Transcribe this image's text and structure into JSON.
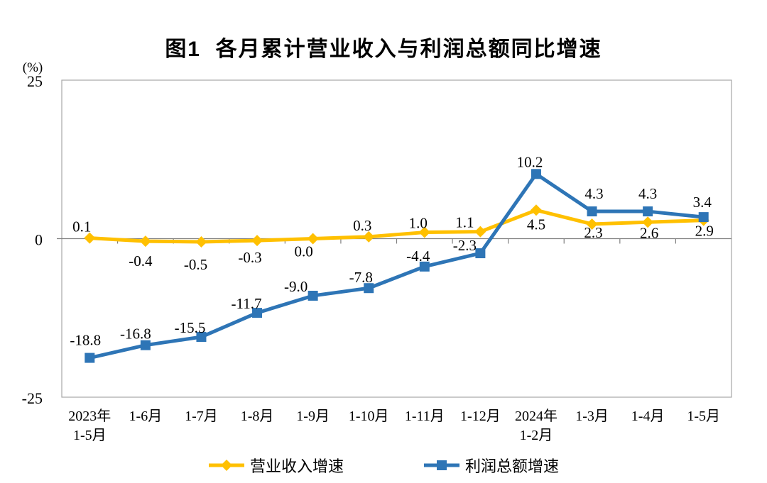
{
  "title": "图1  各月累计营业收入与利润总额同比增速",
  "unit_label": "(%)",
  "colors": {
    "frame": "#a6a6a6",
    "axis": "#808080",
    "text": "#000000",
    "revenue_series": "#ffc000",
    "profit_series": "#2e75b6"
  },
  "chart_data": {
    "type": "line",
    "title": "图1  各月累计营业收入与利润总额同比增速",
    "ylabel": "(%)",
    "xlabel": "",
    "ylim": [
      -25,
      25
    ],
    "y_ticks": [
      25,
      0,
      -25
    ],
    "grid": false,
    "legend_position": "bottom",
    "categories": [
      "2023年\n1-5月",
      "1-6月",
      "1-7月",
      "1-8月",
      "1-9月",
      "1-10月",
      "1-11月",
      "1-12月",
      "2024年\n1-2月",
      "1-3月",
      "1-4月",
      "1-5月"
    ],
    "series": [
      {
        "name": "营业收入增速",
        "color": "#ffc000",
        "marker": "diamond",
        "values": [
          0.1,
          -0.4,
          -0.5,
          -0.3,
          0.0,
          0.3,
          1.0,
          1.1,
          4.5,
          2.3,
          2.6,
          2.9
        ],
        "label_dx": [
          -11,
          -7,
          -8,
          -10,
          -13,
          -9,
          -9,
          -22,
          0,
          2,
          2,
          1
        ],
        "label_dy": [
          -9,
          35,
          39,
          31,
          25,
          -9,
          -6,
          -6,
          27,
          19,
          22,
          22
        ]
      },
      {
        "name": "利润总额增速",
        "color": "#2e75b6",
        "marker": "square",
        "values": [
          -18.8,
          -16.8,
          -15.5,
          -11.7,
          -9.0,
          -7.8,
          -4.4,
          -2.3,
          10.2,
          4.3,
          4.3,
          3.4
        ],
        "label_dx": [
          -6,
          -14,
          -16,
          -15,
          -24,
          -11,
          -9,
          -22,
          -9,
          3,
          0,
          -2
        ],
        "label_dy": [
          -18,
          -9,
          -6,
          -6,
          -6,
          -8,
          -8,
          -4,
          -10,
          -18,
          -18,
          -14
        ]
      }
    ]
  }
}
